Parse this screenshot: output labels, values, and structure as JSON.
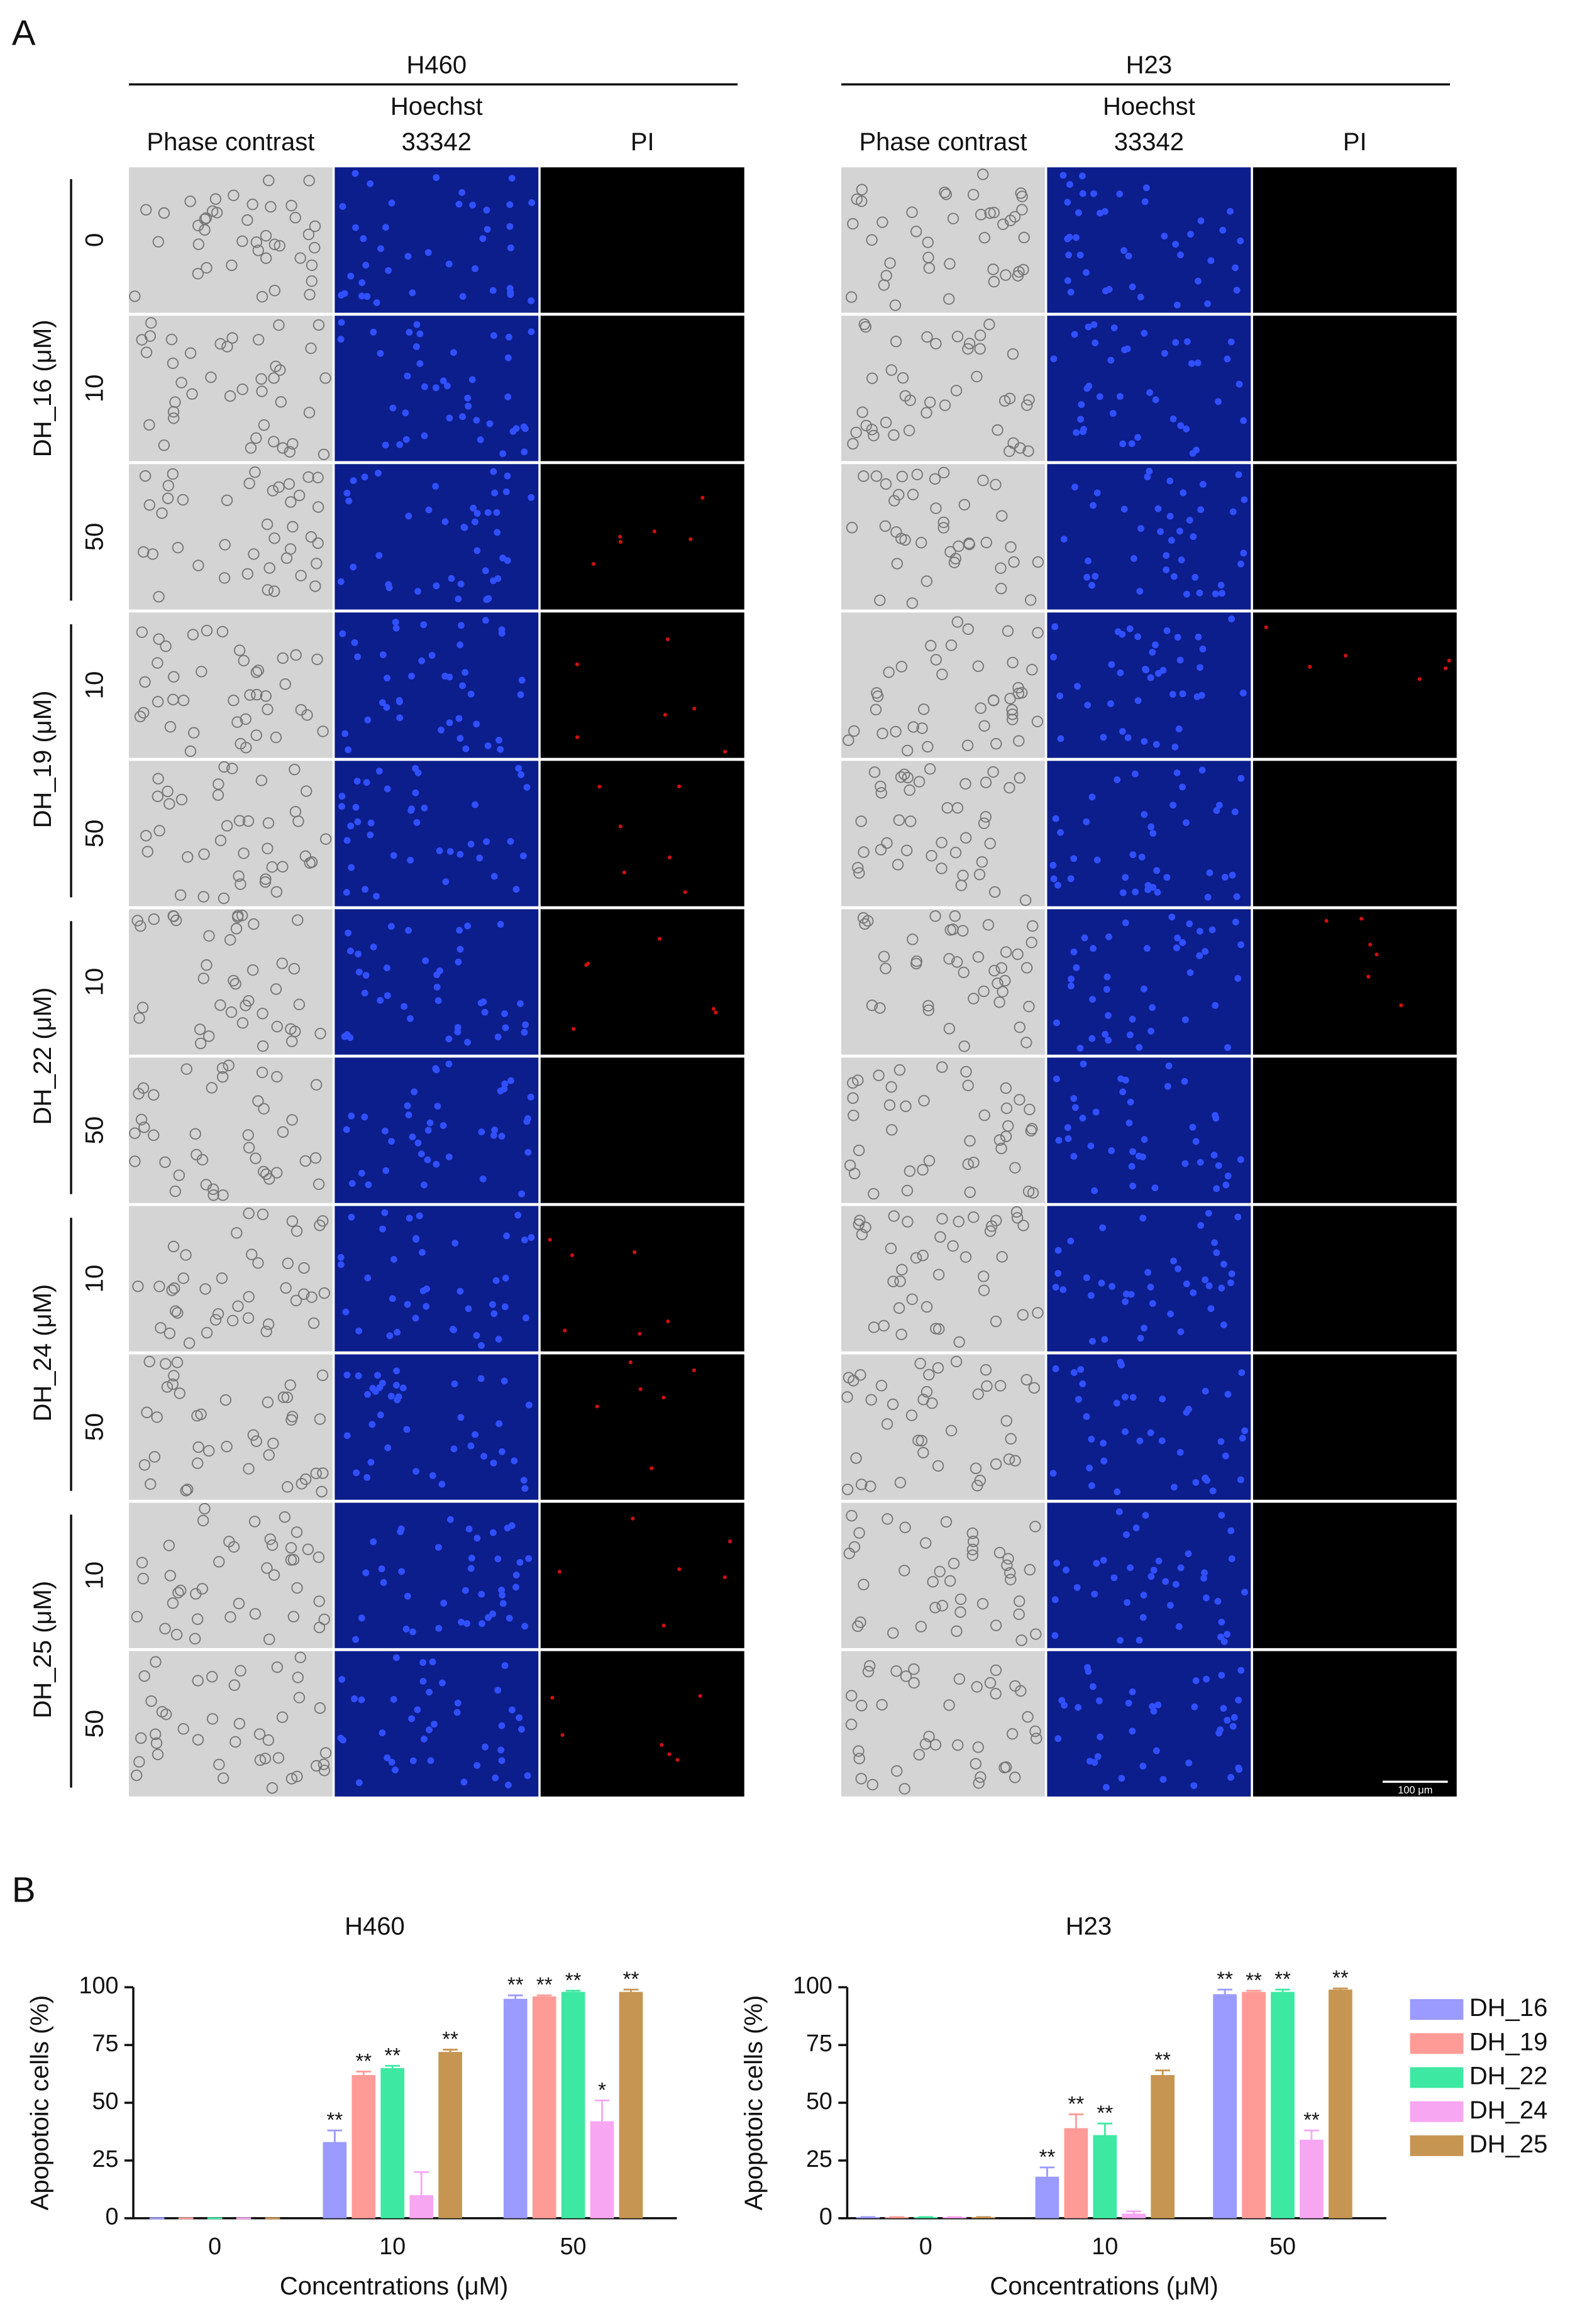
{
  "panel_a": {
    "label": "A",
    "groups": [
      {
        "title": "H460",
        "columns": [
          [
            "Phase contrast"
          ],
          [
            "Hoechst",
            "33342"
          ],
          [
            "PI"
          ]
        ]
      },
      {
        "title": "H23",
        "columns": [
          [
            "Phase contrast"
          ],
          [
            "Hoechst",
            "33342"
          ],
          [
            "PI"
          ]
        ]
      }
    ],
    "treatments": [
      {
        "label": "DH_16 (μM)",
        "concentrations": [
          "0",
          "10",
          "50"
        ]
      },
      {
        "label": "DH_19 (μM)",
        "concentrations": [
          "10",
          "50"
        ]
      },
      {
        "label": "DH_22 (μM)",
        "concentrations": [
          "10",
          "50"
        ]
      },
      {
        "label": "DH_24 (μM)",
        "concentrations": [
          "10",
          "50"
        ]
      },
      {
        "label": "DH_25 (μM)",
        "concentrations": [
          "10",
          "50"
        ]
      }
    ],
    "scale_bar": "100 μm"
  },
  "panel_b": {
    "label": "B"
  },
  "chart_data": [
    {
      "type": "bar",
      "title": "H460",
      "xlabel": "Concentrations (μM)",
      "ylabel": "Apopotoic cells (%)",
      "categories": [
        "0",
        "10",
        "50"
      ],
      "ylim": [
        0,
        100
      ],
      "yticks": [
        0,
        25,
        50,
        75,
        100
      ],
      "legend": false,
      "series": [
        {
          "name": "DH_16",
          "color": "#9a9aff",
          "values": [
            0,
            33,
            95
          ],
          "errors": [
            0,
            5,
            1.5
          ],
          "stars": [
            null,
            "**",
            "**"
          ]
        },
        {
          "name": "DH_19",
          "color": "#ff9b96",
          "values": [
            0,
            62,
            96
          ],
          "errors": [
            0,
            1.5,
            0.5
          ],
          "stars": [
            null,
            "**",
            "**"
          ]
        },
        {
          "name": "DH_22",
          "color": "#3de8a2",
          "values": [
            0,
            65,
            98
          ],
          "errors": [
            0,
            1,
            0.5
          ],
          "stars": [
            null,
            "**",
            "**"
          ]
        },
        {
          "name": "DH_24",
          "color": "#f7a6f2",
          "values": [
            0,
            10,
            42
          ],
          "errors": [
            0,
            10,
            9
          ],
          "stars": [
            null,
            null,
            "*"
          ]
        },
        {
          "name": "DH_25",
          "color": "#c79552",
          "values": [
            0,
            72,
            98
          ],
          "errors": [
            0,
            1,
            1
          ],
          "stars": [
            null,
            "**",
            "**"
          ]
        }
      ]
    },
    {
      "type": "bar",
      "title": "H23",
      "xlabel": "Concentrations (μM)",
      "ylabel": "Apopotoic cells (%)",
      "categories": [
        "0",
        "10",
        "50"
      ],
      "ylim": [
        0,
        100
      ],
      "yticks": [
        0,
        25,
        50,
        75,
        100
      ],
      "legend": "right",
      "series": [
        {
          "name": "DH_16",
          "color": "#9a9aff",
          "values": [
            0.5,
            18,
            97
          ],
          "errors": [
            0,
            4,
            2
          ],
          "stars": [
            null,
            "**",
            "**"
          ]
        },
        {
          "name": "DH_19",
          "color": "#ff9b96",
          "values": [
            0.5,
            39,
            98
          ],
          "errors": [
            0,
            6,
            0.5
          ],
          "stars": [
            null,
            "**",
            "**"
          ]
        },
        {
          "name": "DH_22",
          "color": "#3de8a2",
          "values": [
            0.5,
            36,
            98
          ],
          "errors": [
            0,
            5,
            1
          ],
          "stars": [
            null,
            "**",
            "**"
          ]
        },
        {
          "name": "DH_24",
          "color": "#f7a6f2",
          "values": [
            0.5,
            2,
            34
          ],
          "errors": [
            0,
            1,
            4
          ],
          "stars": [
            null,
            null,
            "**"
          ]
        },
        {
          "name": "DH_25",
          "color": "#c79552",
          "values": [
            0.5,
            62,
            99
          ],
          "errors": [
            0,
            2,
            0.5
          ],
          "stars": [
            null,
            "**",
            "**"
          ]
        }
      ]
    }
  ]
}
